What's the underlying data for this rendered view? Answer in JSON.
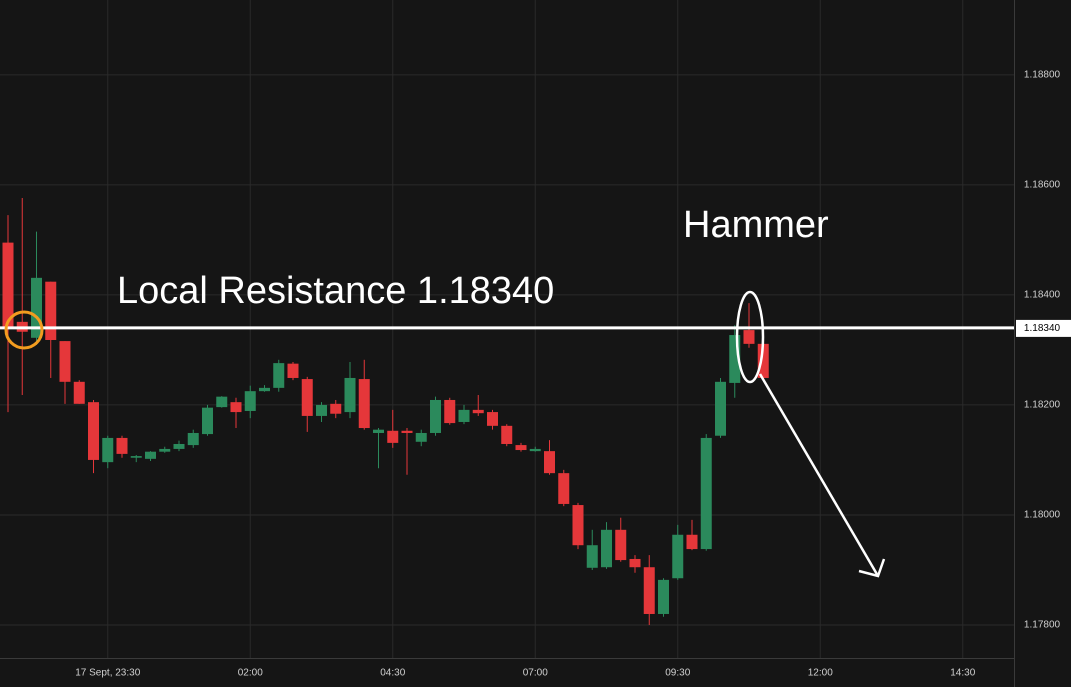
{
  "chart_data": {
    "type": "candlestick",
    "categories": [
      null,
      null,
      null,
      null,
      null,
      null,
      null,
      "17 Sept, 23:30",
      null,
      null,
      null,
      null,
      null,
      null,
      null,
      null,
      null,
      "02:00",
      null,
      null,
      null,
      null,
      null,
      null,
      null,
      null,
      null,
      "04:30",
      null,
      null,
      null,
      null,
      null,
      null,
      null,
      null,
      null,
      "07:00",
      null,
      null,
      null,
      null,
      null,
      null,
      null,
      null,
      null,
      "09:30",
      null,
      null,
      null,
      null,
      null,
      null,
      null,
      null,
      null,
      "12:00",
      null,
      null,
      null,
      null,
      null,
      null,
      null,
      null,
      null,
      "14:30",
      null,
      null,
      null
    ],
    "open": [
      1.18495,
      1.18351,
      1.18322,
      1.18424,
      1.18316,
      1.18242,
      1.18205,
      1.18096,
      1.1814,
      1.18104,
      1.18102,
      1.18115,
      1.1812,
      1.18127,
      1.18147,
      1.18196,
      1.18205,
      1.18189,
      1.18225,
      1.18231,
      1.18275,
      1.18247,
      1.1818,
      1.18202,
      1.18187,
      1.18247,
      1.18149,
      1.18153,
      1.18153,
      1.18133,
      1.18149,
      1.18209,
      1.18169,
      1.18191,
      1.18187,
      1.18162,
      1.18127,
      1.18116,
      1.18116,
      1.18076,
      1.18018,
      1.17904,
      1.17905,
      1.17973,
      1.1792,
      1.17905,
      1.1782,
      1.17885,
      1.17964,
      1.17938,
      1.18144,
      1.1824,
      1.18336,
      1.18311,
      null,
      null,
      null,
      null,
      null,
      null,
      null,
      null,
      null,
      null,
      null,
      null,
      null,
      null,
      null,
      null,
      null
    ],
    "high": [
      1.18545,
      1.18576,
      1.18515,
      1.18424,
      1.18316,
      1.18245,
      1.18209,
      1.18144,
      1.18144,
      1.18109,
      1.18116,
      1.18124,
      1.18135,
      1.18155,
      1.182,
      1.18216,
      1.18213,
      1.18235,
      1.18236,
      1.18282,
      1.18278,
      1.18251,
      1.18205,
      1.18209,
      1.18278,
      1.18282,
      1.18158,
      1.18191,
      1.18158,
      1.18155,
      1.18215,
      1.18213,
      1.182,
      1.18218,
      1.18191,
      1.18165,
      1.18131,
      1.18124,
      1.18136,
      1.18082,
      1.18022,
      1.17973,
      1.17987,
      1.17995,
      1.17927,
      1.17927,
      1.17885,
      1.17982,
      1.17991,
      1.18147,
      1.18249,
      1.18345,
      1.18385,
      1.18315,
      null,
      null,
      null,
      null,
      null,
      null,
      null,
      null,
      null,
      null,
      null,
      null,
      null,
      null,
      null,
      null,
      null
    ],
    "low": [
      1.18187,
      1.18218,
      1.18309,
      1.18249,
      1.18202,
      1.18202,
      1.18076,
      1.18085,
      1.18104,
      1.18096,
      1.18098,
      1.18113,
      1.18116,
      1.18122,
      1.18144,
      1.18195,
      1.18158,
      1.18176,
      1.18224,
      1.18224,
      1.18245,
      1.18151,
      1.18169,
      1.18176,
      1.18176,
      1.18155,
      1.18085,
      1.18122,
      1.18073,
      1.18125,
      1.18144,
      1.18164,
      1.18165,
      1.1818,
      1.18155,
      1.18125,
      1.18115,
      1.18115,
      1.18073,
      1.18016,
      1.17938,
      1.179,
      1.17902,
      1.17915,
      1.17895,
      1.178,
      1.17815,
      1.17882,
      1.17936,
      1.17935,
      1.1814,
      1.18213,
      1.18304,
      1.18245,
      null,
      null,
      null,
      null,
      null,
      null,
      null,
      null,
      null,
      null,
      null,
      null,
      null,
      null,
      null,
      null,
      null
    ],
    "close": [
      1.1834,
      1.18333,
      1.18431,
      1.18318,
      1.18242,
      1.18202,
      1.181,
      1.1814,
      1.18111,
      1.18107,
      1.18115,
      1.1812,
      1.18129,
      1.18149,
      1.18195,
      1.18215,
      1.18187,
      1.18225,
      1.18231,
      1.18276,
      1.18249,
      1.1818,
      1.182,
      1.18184,
      1.18249,
      1.18158,
      1.18155,
      1.18131,
      1.18149,
      1.18149,
      1.18209,
      1.18167,
      1.18191,
      1.18185,
      1.18162,
      1.18129,
      1.18118,
      1.1812,
      1.18076,
      1.1802,
      1.17945,
      1.17945,
      1.17973,
      1.17918,
      1.17905,
      1.1782,
      1.17882,
      1.17964,
      1.17938,
      1.1814,
      1.18242,
      1.18327,
      1.18311,
      1.18249,
      null,
      null,
      null,
      null,
      null,
      null,
      null,
      null,
      null,
      null,
      null,
      null,
      null,
      null,
      null,
      null,
      null
    ],
    "up_color": "#2b8a5c",
    "down_color": "#e5373a",
    "ylim": [
      1.1774,
      1.18936
    ],
    "yticks": [
      {
        "value": 1.178,
        "label": "1.17800"
      },
      {
        "value": 1.18,
        "label": "1.18000"
      },
      {
        "value": 1.182,
        "label": "1.18200"
      },
      {
        "value": 1.184,
        "label": "1.18400"
      },
      {
        "value": 1.186,
        "label": "1.18600"
      },
      {
        "value": 1.188,
        "label": "1.18800"
      }
    ],
    "grid": true,
    "hline": {
      "value": 1.1834,
      "label": "1.18340"
    },
    "annotations": [
      "Local Resistance 1.18340",
      "Hammer"
    ]
  }
}
